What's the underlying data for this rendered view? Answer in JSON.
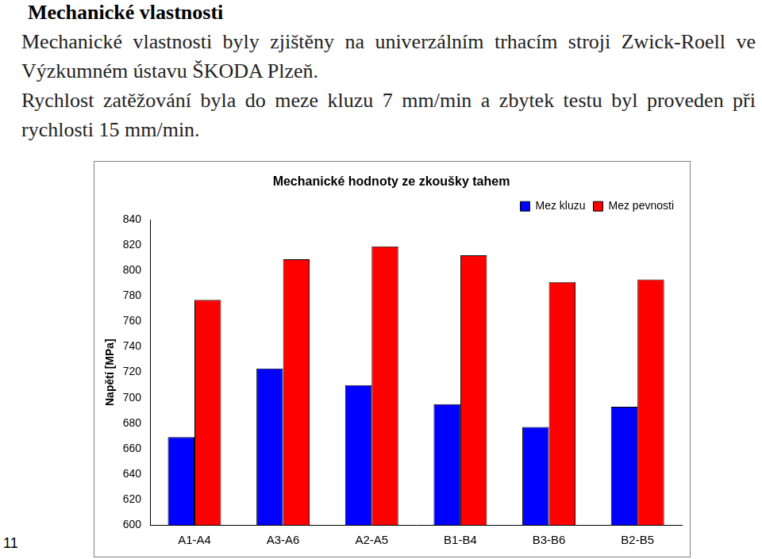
{
  "header": {
    "title": "Mechanické vlastnosti"
  },
  "paragraphs": [
    "Mechanické vlastnosti byly zjištěny na univerzálním trhacím stroji Zwick-Roell ve Výzkumném ústavu ŠKODA Plzeň.",
    "Rychlost zatěžování byla do meze kluzu 7 mm/min a zbytek testu byl proveden při rychlosti  15 mm/min."
  ],
  "page_number": "11",
  "chart_data": {
    "type": "bar",
    "title": "Mechanické hodnoty ze zkoušky tahem",
    "y_label": "Napětí [MPa]",
    "categories": [
      "A1-A4",
      "A3-A6",
      "A2-A5",
      "B1-B4",
      "B3-B6",
      "B2-B5"
    ],
    "series": [
      {
        "name": "Mez kluzu",
        "color": "#0000ff",
        "values": [
          669,
          723,
          710,
          695,
          677,
          693
        ]
      },
      {
        "name": "Mez pevnosti",
        "color": "#ff0000",
        "values": [
          777,
          809,
          819,
          812,
          791,
          793
        ]
      }
    ],
    "ylim": [
      600,
      840
    ],
    "yticks": [
      600,
      620,
      640,
      660,
      680,
      700,
      720,
      740,
      760,
      780,
      800,
      820,
      840
    ],
    "grid": false,
    "legend": "top right"
  }
}
